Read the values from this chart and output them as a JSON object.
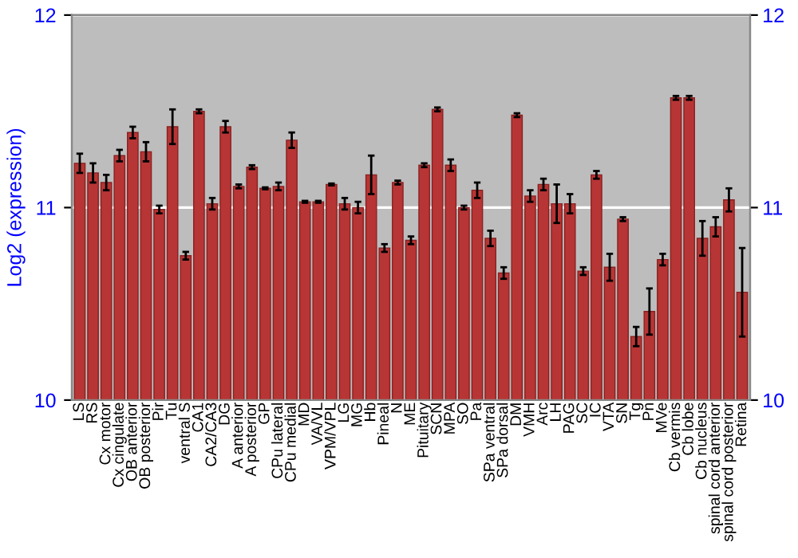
{
  "chart_data": {
    "type": "bar",
    "ylabel": "Log2 (expression)",
    "categories": [
      "LS",
      "RS",
      "Cx motor",
      "Cx cingulate",
      "OB anterior",
      "OB posterior",
      "Pir",
      "Tu",
      "ventral S",
      "CA1",
      "CA2/CA3",
      "DG",
      "A anterior",
      "A posterior",
      "GP",
      "CPu lateral",
      "CPu medial",
      "MD",
      "VA/VL",
      "VPM/VPL",
      "LG",
      "MG",
      "Hb",
      "Pineal",
      "N",
      "ME",
      "Pituitary",
      "SCN",
      "MPA",
      "SO",
      "Pa",
      "SPa ventral",
      "SPa dorsal",
      "DM",
      "VMH",
      "Arc",
      "LH",
      "PAG",
      "SC",
      "IC",
      "VTA",
      "SN",
      "Tg",
      "Pn",
      "MVe",
      "Cb vermis",
      "Cb lobe",
      "Cb nucleus",
      "spinal cord anterior",
      "spinal cord posterior",
      "Retina"
    ],
    "values": [
      11.23,
      11.18,
      11.13,
      11.27,
      11.39,
      11.29,
      10.99,
      11.42,
      10.75,
      11.5,
      11.02,
      11.42,
      11.11,
      11.21,
      11.1,
      11.11,
      11.35,
      11.03,
      11.03,
      11.12,
      11.02,
      11.0,
      11.17,
      10.79,
      11.13,
      10.83,
      11.22,
      11.51,
      11.22,
      11.0,
      11.09,
      10.84,
      10.66,
      11.48,
      11.06,
      11.12,
      11.02,
      11.02,
      10.67,
      11.17,
      10.69,
      10.94,
      10.33,
      10.46,
      10.73,
      11.57,
      11.57,
      10.84,
      10.9,
      11.04,
      10.56
    ],
    "errors": [
      0.05,
      0.05,
      0.04,
      0.03,
      0.03,
      0.05,
      0.02,
      0.09,
      0.02,
      0.01,
      0.03,
      0.03,
      0.01,
      0.01,
      0.005,
      0.02,
      0.04,
      0.005,
      0.005,
      0.005,
      0.03,
      0.03,
      0.1,
      0.02,
      0.01,
      0.02,
      0.01,
      0.01,
      0.03,
      0.01,
      0.04,
      0.04,
      0.03,
      0.01,
      0.03,
      0.03,
      0.1,
      0.05,
      0.02,
      0.02,
      0.07,
      0.01,
      0.05,
      0.12,
      0.03,
      0.01,
      0.01,
      0.09,
      0.05,
      0.06,
      0.23
    ],
    "color": "#b83535",
    "ylim": [
      10,
      12
    ],
    "yticks": [
      10,
      11,
      12
    ],
    "y2lim": [
      10,
      12
    ],
    "y2ticks": [
      10,
      11,
      12
    ],
    "grid": "y"
  }
}
